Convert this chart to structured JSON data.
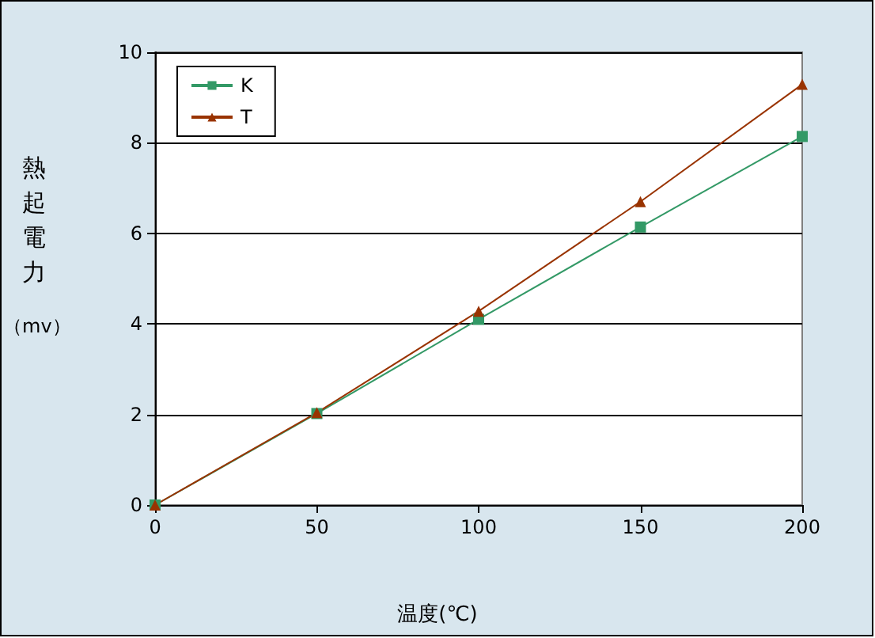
{
  "chart_data": {
    "type": "line",
    "xlabel": "温度(℃)",
    "ylabel": "熱起電力（mv）",
    "x": [
      0,
      50,
      100,
      150,
      200
    ],
    "series": [
      {
        "name": "K",
        "color": "#339966",
        "marker": "square",
        "values": [
          0,
          2.02,
          4.1,
          6.14,
          8.14
        ]
      },
      {
        "name": "T",
        "color": "#993300",
        "marker": "triangle",
        "values": [
          0,
          2.04,
          4.28,
          6.7,
          9.29
        ]
      }
    ],
    "xlim": [
      0,
      200
    ],
    "xticks": [
      0,
      50,
      100,
      150,
      200
    ],
    "ylim": [
      0,
      10
    ],
    "yticks": [
      0,
      2,
      4,
      6,
      8,
      10
    ],
    "grid": "y",
    "legend": "top left",
    "line_style": "solid"
  }
}
